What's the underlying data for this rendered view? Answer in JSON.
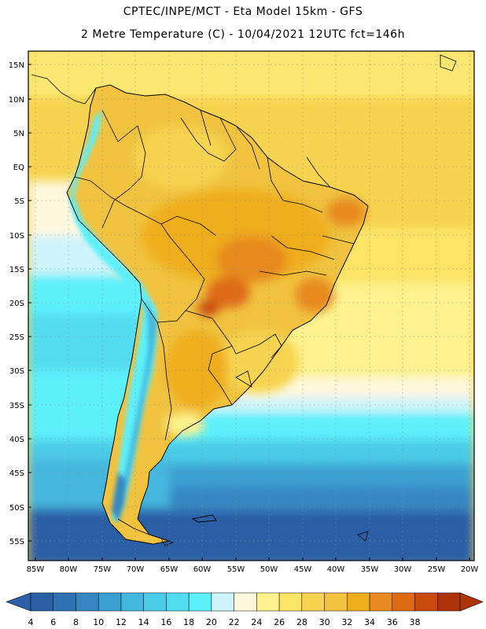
{
  "header": {
    "line1": "CPTEC/INPE/MCT  -   Eta Model 15km  -  GFS",
    "line2": "2 Metre Temperature (C) - 10/04/2021 12UTC fct=146h"
  },
  "map": {
    "lat_ticks": [
      "15N",
      "10N",
      "5N",
      "EQ",
      "5S",
      "10S",
      "15S",
      "20S",
      "25S",
      "30S",
      "35S",
      "40S",
      "45S",
      "50S",
      "55S"
    ],
    "lon_ticks": [
      "85W",
      "80W",
      "75W",
      "70W",
      "65W",
      "60W",
      "55W",
      "50W",
      "45W",
      "40W",
      "35W",
      "30W",
      "25W",
      "20W"
    ],
    "lat_range": [
      -57.5,
      16.5
    ],
    "lon_range": [
      -86.0,
      -19.0
    ]
  },
  "colorbar": {
    "labels": [
      "4",
      "6",
      "8",
      "10",
      "12",
      "14",
      "16",
      "18",
      "20",
      "22",
      "24",
      "26",
      "28",
      "30",
      "32",
      "34",
      "36",
      "38"
    ],
    "colors": [
      "#2b5fa6",
      "#2f72b4",
      "#3487c2",
      "#3aa0d2",
      "#44b7df",
      "#4ccbe8",
      "#52dcf0",
      "#5cf0fb",
      "#cef4fb",
      "#fff8dc",
      "#fdf28d",
      "#fbe466",
      "#f7d44f",
      "#f1c33f",
      "#efae1d",
      "#e88a1f",
      "#de6a13",
      "#c84a0c",
      "#ac3408"
    ],
    "low_arrow_color": "#2b5fa6",
    "high_arrow_color": "#ac3408"
  },
  "colors": {
    "ocean_south_deep": "#2b5fa6",
    "ocean_mid": "#3aa0d2",
    "ocean_cyan": "#52dcf0",
    "ocean_warm": "#fbe466",
    "land_hot": "#efae1d",
    "andes_cold": "#44b7df"
  }
}
